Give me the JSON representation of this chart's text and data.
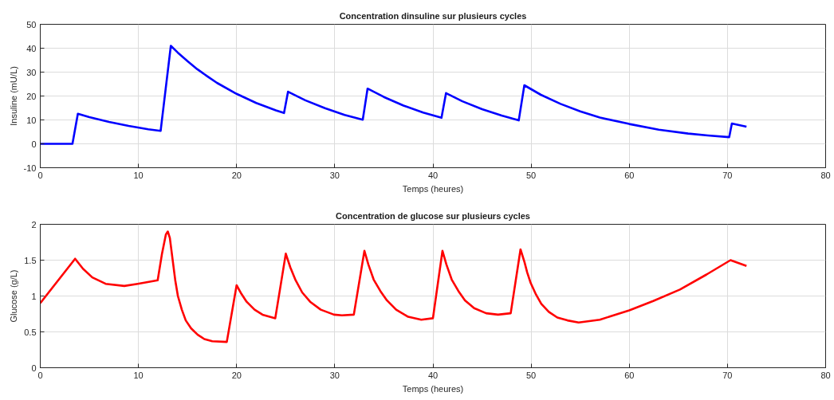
{
  "chart_data": [
    {
      "type": "line",
      "title": "Concentration dinsuline sur plusieurs cycles",
      "xlabel": "Temps (heures)",
      "ylabel": "Insuline (mU/L)",
      "x": [
        0,
        3.28,
        3.83,
        5,
        7,
        9,
        11,
        12.26,
        13.3,
        14,
        15,
        16,
        17,
        18,
        20,
        22,
        24,
        24.83,
        25.24,
        27,
        29,
        31,
        32.85,
        33.34,
        35,
        37,
        39,
        40.87,
        41.33,
        43,
        45,
        47,
        48.74,
        49.31,
        51,
        53,
        55,
        57,
        60,
        63,
        66,
        68,
        70.18,
        70.45,
        71.94
      ],
      "series": [
        {
          "color": "#0000ff",
          "values": [
            0,
            0,
            12.6,
            11.2,
            9.2,
            7.5,
            6.1,
            5.4,
            41,
            38.2,
            34.6,
            31.2,
            28.3,
            25.5,
            20.9,
            17.1,
            14,
            12.9,
            21.8,
            18.2,
            14.9,
            12.1,
            10.1,
            23.1,
            19.6,
            16,
            13.1,
            10.9,
            21.2,
            17.8,
            14.5,
            11.8,
            9.8,
            24.5,
            20.5,
            16.7,
            13.6,
            11,
            8.3,
            5.9,
            4.3,
            3.5,
            2.8,
            8.5,
            7.2
          ]
        }
      ],
      "xlim": [
        0,
        80
      ],
      "xticks": [
        0,
        10,
        20,
        30,
        40,
        50,
        60,
        70,
        80
      ],
      "ylim": [
        -10,
        50
      ],
      "yticks": [
        -10,
        0,
        10,
        20,
        30,
        40,
        50
      ],
      "grid": true,
      "line_style": "solid"
    },
    {
      "type": "line",
      "title": "Concentration de glucose sur plusieurs cycles",
      "xlabel": "Temps (heures)",
      "ylabel": "Glucose (g/L)",
      "x": [
        0,
        3.55,
        4.35,
        5.3,
        6.66,
        8.56,
        9.92,
        11.96,
        12.4,
        12.8,
        12.99,
        13.2,
        13.48,
        13.75,
        14.02,
        14.42,
        14.82,
        15.36,
        16.04,
        16.71,
        17.52,
        19.0,
        20.0,
        20.49,
        21.02,
        21.83,
        22.64,
        23.94,
        25.01,
        25.47,
        26.01,
        26.68,
        27.49,
        28.57,
        29.92,
        30.73,
        31.94,
        33.02,
        33.42,
        33.96,
        34.64,
        35.31,
        36.25,
        37.47,
        38.81,
        40.0,
        40.97,
        41.37,
        41.91,
        42.59,
        43.26,
        44.2,
        45.42,
        46.63,
        47.92,
        48.92,
        49.33,
        49.6,
        49.96,
        50.5,
        51.04,
        51.8,
        52.67,
        53.7,
        54.84,
        57.0,
        60.0,
        62.44,
        65.16,
        67.87,
        70.31,
        71.94
      ],
      "series": [
        {
          "color": "#ff0000",
          "values": [
            0.9,
            1.52,
            1.38,
            1.26,
            1.17,
            1.14,
            1.17,
            1.22,
            1.59,
            1.86,
            1.9,
            1.81,
            1.51,
            1.22,
            1.0,
            0.81,
            0.66,
            0.55,
            0.46,
            0.4,
            0.37,
            0.36,
            1.15,
            1.03,
            0.92,
            0.81,
            0.74,
            0.69,
            1.59,
            1.4,
            1.22,
            1.05,
            0.92,
            0.81,
            0.74,
            0.73,
            0.74,
            1.63,
            1.44,
            1.23,
            1.07,
            0.94,
            0.81,
            0.71,
            0.67,
            0.69,
            1.63,
            1.44,
            1.23,
            1.07,
            0.94,
            0.83,
            0.76,
            0.74,
            0.76,
            1.65,
            1.47,
            1.33,
            1.18,
            1.02,
            0.89,
            0.78,
            0.7,
            0.66,
            0.63,
            0.67,
            0.8,
            0.93,
            1.09,
            1.3,
            1.5,
            1.42
          ]
        }
      ],
      "xlim": [
        0,
        80
      ],
      "xticks": [
        0,
        10,
        20,
        30,
        40,
        50,
        60,
        70,
        80
      ],
      "ylim": [
        0,
        2
      ],
      "yticks": [
        0,
        0.5,
        1,
        1.5,
        2
      ],
      "grid": true,
      "line_style": "solid"
    }
  ]
}
